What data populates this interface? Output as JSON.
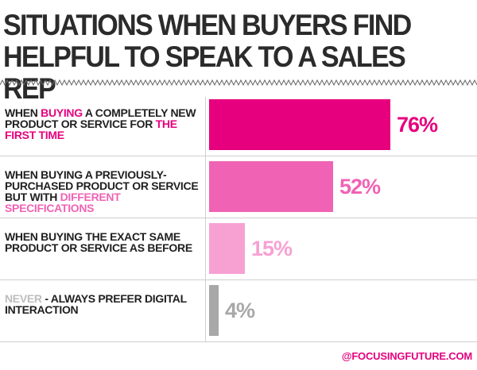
{
  "title": {
    "line1": "SITUATIONS WHEN BUYERS FIND",
    "line2": "HELPFUL TO SPEAK TO A SALES REP"
  },
  "footer": "@FOCUSINGFUTURE.COM",
  "chart_data": {
    "type": "bar",
    "orientation": "horizontal",
    "title": "SITUATIONS WHEN BUYERS FIND HELPFUL TO SPEAK TO A SALES REP",
    "categories": [
      "WHEN BUYING A COMPLETELY NEW PRODUCT OR SERVICE FOR THE FIRST TIME",
      "WHEN BUYING A PREVIOUSLY-PURCHASED PRODUCT OR SERVICE BUT WITH DIFFERENT SPECIFICATIONS",
      "WHEN BUYING THE EXACT SAME PRODUCT OR SERVICE AS BEFORE",
      "NEVER - ALWAYS PREFER DIGITAL INTERACTION"
    ],
    "values": [
      76,
      52,
      15,
      4
    ],
    "value_labels": [
      "76%",
      "52%",
      "15%",
      "4%"
    ],
    "colors": [
      "#e6007e",
      "#f063b4",
      "#f7a1d3",
      "#a8a8a8"
    ],
    "xlim": [
      0,
      100
    ],
    "grid": false,
    "legend": "none"
  },
  "rows": [
    {
      "segments": [
        {
          "text": "WHEN ",
          "style": ""
        },
        {
          "text": "BUYING",
          "style": "hl"
        },
        {
          "text": " A COMPLETELY NEW PRODUCT OR SERVICE FOR ",
          "style": ""
        },
        {
          "text": "THE FIRST TIME",
          "style": "hl"
        }
      ]
    },
    {
      "segments": [
        {
          "text": "WHEN BUYING A PREVIOUSLY-PURCHASED PRODUCT OR SERVICE BUT WITH ",
          "style": ""
        },
        {
          "text": "DIFFERENT SPECIFICATIONS",
          "style": "hl2"
        }
      ]
    },
    {
      "segments": [
        {
          "text": "WHEN BUYING THE EXACT SAME PRODUCT OR SERVICE AS BEFORE",
          "style": ""
        }
      ]
    },
    {
      "segments": [
        {
          "text": "NEVER",
          "style": "hl3"
        },
        {
          "text": " - ALWAYS PREFER DIGITAL INTERACTION",
          "style": ""
        }
      ]
    }
  ]
}
